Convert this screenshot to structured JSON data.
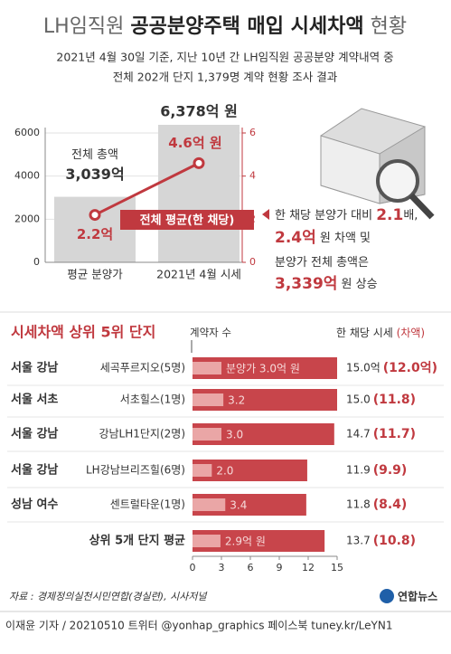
{
  "header": {
    "title_parts": [
      "LH임직원",
      "공공분양주택 매입 시세차액",
      "현황"
    ],
    "subtitle": [
      "2021년 4월 30일 기준, 지난 10년 간 LH임직원 공공분양 계약내역 중",
      "전체 202개 단지 1,379명 계약 현황 조사 결과"
    ]
  },
  "chart_data": [
    {
      "type": "bar_line",
      "categories": [
        "평균 분양가",
        "2021년 4월 시세"
      ],
      "series": [
        {
          "name": "전체 총액",
          "color": "#d6d6d6",
          "values": [
            3039,
            6378
          ],
          "value_labels": [
            "3,039억",
            "6,378억 원"
          ]
        },
        {
          "name": "전체 평균(한 채당)",
          "color": "#c0393f",
          "axis": "y2",
          "values": [
            2.2,
            4.6
          ],
          "value_labels": [
            "2.2억",
            "4.6억 원"
          ]
        }
      ],
      "ylim": [
        0,
        6000
      ],
      "yticks": [
        0,
        2000,
        4000,
        6000
      ],
      "y2lim": [
        0,
        6
      ],
      "y2ticks": [
        0,
        2,
        4,
        6
      ],
      "grid": true,
      "note": [
        [
          "한 채당 분양가 대비 ",
          "2.1",
          "배,"
        ],
        [
          "2.4억",
          " 원 차액 및"
        ],
        [
          "분양가 전체 총액은"
        ],
        [
          "3,339억",
          " 원 상승"
        ]
      ]
    },
    {
      "type": "hbar",
      "title": "시세차액 상위 5위 단지",
      "count_header": "계약자 수",
      "value_header": "한 채당 시세",
      "diff_header": "(차액)",
      "regions": [
        "서울 강남",
        "서울 서초",
        "서울 강남",
        "서울 강남",
        "성남 여수",
        null
      ],
      "categories": [
        "세곡푸르지오(5명)",
        "서초힐스(1명)",
        "강남LH1단지(2명)",
        "LH강남브리즈힐(6명)",
        "센트럴타운(1명)",
        "상위 5개 단지 평균"
      ],
      "series": [
        {
          "color": "#c8454b",
          "values": [
            15.0,
            15.0,
            14.7,
            11.9,
            11.8,
            13.7
          ],
          "value_labels": [
            "15.0억",
            "15.0",
            "14.7",
            "11.9",
            "11.8",
            "13.7"
          ]
        },
        {
          "color": "#eaa6a6",
          "values": [
            3.0,
            3.2,
            3.0,
            2.0,
            3.4,
            2.9
          ],
          "value_labels": [
            "분양가 3.0억 원",
            "3.2",
            "3.0",
            "2.0",
            "3.4",
            "2.9억 원"
          ]
        }
      ],
      "differences": [
        12.0,
        11.8,
        11.7,
        9.9,
        8.4,
        10.8
      ],
      "difference_labels": [
        "(12.0억)",
        "(11.8)",
        "(11.7)",
        "(9.9)",
        "(8.4)",
        "(10.8)"
      ],
      "xlim": [
        0,
        15
      ],
      "xticks": [
        0,
        3,
        6,
        9,
        12,
        15
      ]
    }
  ],
  "footer": {
    "source": "자료 : 경제정의실천시민연합(경실련), 시사저널",
    "logo": "연합뉴스",
    "credit": "이재윤 기자 / 20210510  트위터 @yonhap_graphics  페이스북 tuney.kr/LeYN1"
  }
}
